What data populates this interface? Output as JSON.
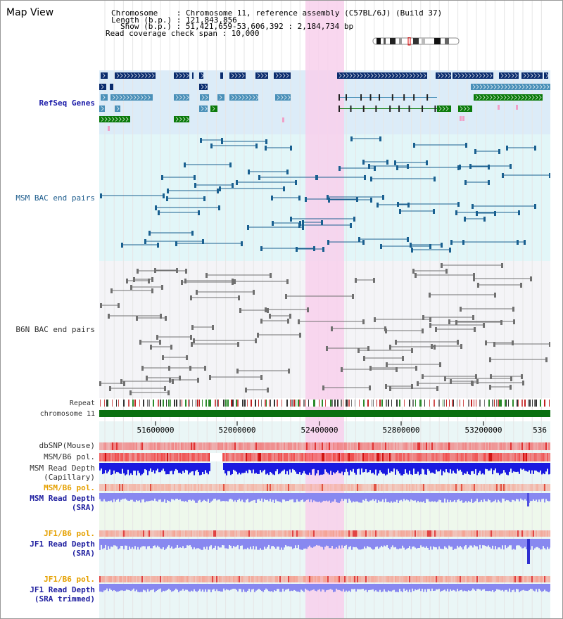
{
  "title": "Map View",
  "header": {
    "chromosome_label": "Chromosome    : Chromosome 11, reference assembly (C57BL/6J) (Build 37)",
    "length_label": "Length (b.p.) : 121,843,856",
    "show_label": "Show (b.p.) : 51,421,659-53,606,392 : 2,184,734 bp",
    "coverage_label": "Read coverage check span : 10,000"
  },
  "tracks": {
    "refseq": "RefSeq Genes",
    "msm_bac": "MSM BAC end pairs",
    "b6n_bac": "B6N BAC end pairs",
    "repeat": "Repeat",
    "chromosome": "chromosome 11",
    "dbsnp": "dbSNP(Mouse)",
    "msm_b6_pol": "MSM/B6 pol.",
    "msm_depth_cap": "MSM Read Depth\n(Capillary)",
    "msm_b6_pol2": "MSM/B6 pol.",
    "msm_depth_sra": "MSM Read Depth\n(SRA)",
    "jf1_b6_pol": "JF1/B6 pol.",
    "jf1_depth_sra": "JF1 Read Depth\n(SRA)",
    "jf1_b6_pol2": "JF1/B6 pol.",
    "jf1_depth_trim": "JF1 Read Depth\n(SRA trimmed)"
  },
  "axis": {
    "ticks": [
      "51600000",
      "52000000",
      "52400000",
      "52800000",
      "53200000",
      "536"
    ]
  },
  "colors": {
    "refseq_bg": "#dcecf8",
    "msm_bg": "#e2f6f8",
    "b6n_bg": "#f2f2f6",
    "highlight": "#f8d0ec",
    "gene_dark": "#0a2c6e",
    "gene_mid": "#4a90b8",
    "gene_green": "#0a7a0a",
    "msm_feature": "#1a6090",
    "b6n_feature": "#707070",
    "chromosome_bar": "#0a7010",
    "depth_blue": "#1a1ae0",
    "depth_sra": "#8888f0"
  }
}
